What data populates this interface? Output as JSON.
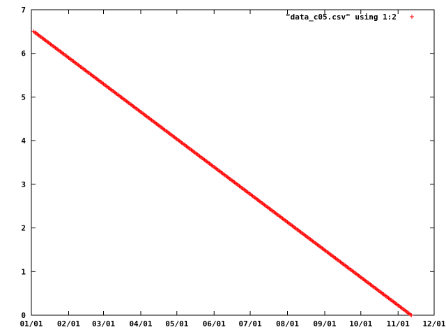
{
  "chart_data": {
    "type": "scatter",
    "title": "",
    "xlabel": "",
    "ylabel": "",
    "x_ticks": [
      "01/01",
      "02/01",
      "03/01",
      "04/01",
      "05/01",
      "06/01",
      "07/01",
      "08/01",
      "09/01",
      "10/01",
      "11/01",
      "12/01"
    ],
    "x_tick_dates": [
      "2000-01-01",
      "2000-02-01",
      "2000-03-01",
      "2000-04-01",
      "2000-05-01",
      "2000-06-01",
      "2000-07-01",
      "2000-08-01",
      "2000-09-01",
      "2000-10-01",
      "2000-11-01",
      "2000-12-01"
    ],
    "xlim": [
      "2000-01-01",
      "2000-12-01"
    ],
    "y_ticks": [
      "0",
      "1",
      "2",
      "3",
      "4",
      "5",
      "6",
      "7"
    ],
    "ylim": [
      0,
      7
    ],
    "grid": false,
    "legend_position": "top-right",
    "series": [
      {
        "name": "\"data_c05.csv\" using 1:2",
        "color": "#ff0000",
        "marker": "plus",
        "x_start": "2000-01-03",
        "x_end": "2000-11-12",
        "y_start": 6.5,
        "y_end": 0.0,
        "interval_days": 1,
        "trend": "linear decrease"
      }
    ]
  }
}
